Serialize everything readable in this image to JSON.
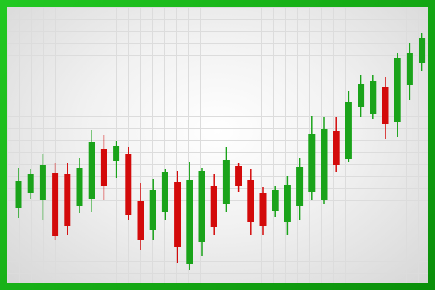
{
  "chart_data": {
    "type": "candlestick",
    "up_color": "#1aa31a",
    "down_color": "#d30a0a",
    "grid": true,
    "ylim": [
      0,
      408
    ],
    "open": [
      115,
      136,
      126,
      165,
      163,
      118,
      128,
      198,
      182,
      191,
      125,
      85,
      110,
      152,
      36,
      68,
      146,
      121,
      174,
      155,
      137,
      111,
      95,
      118,
      138,
      127,
      223,
      185,
      258,
      248,
      286,
      236,
      288,
      320
    ],
    "high": [
      171,
      170,
      191,
      178,
      178,
      186,
      225,
      218,
      210,
      201,
      150,
      156,
      170,
      168,
      180,
      172,
      163,
      201,
      178,
      170,
      145,
      146,
      160,
      186,
      245,
      243,
      243,
      280,
      303,
      303,
      300,
      333,
      348,
      361
    ],
    "low": [
      101,
      128,
      98,
      70,
      78,
      108,
      110,
      126,
      158,
      98,
      56,
      71,
      98,
      38,
      28,
      48,
      78,
      110,
      138,
      78,
      78,
      103,
      78,
      98,
      126,
      121,
      166,
      180,
      243,
      240,
      213,
      215,
      268,
      308
    ],
    "close": [
      153,
      163,
      176,
      76,
      90,
      172,
      208,
      146,
      203,
      105,
      70,
      140,
      166,
      60,
      155,
      167,
      88,
      183,
      146,
      96,
      90,
      140,
      148,
      173,
      220,
      227,
      176,
      265,
      290,
      294,
      233,
      326,
      333,
      355
    ]
  }
}
